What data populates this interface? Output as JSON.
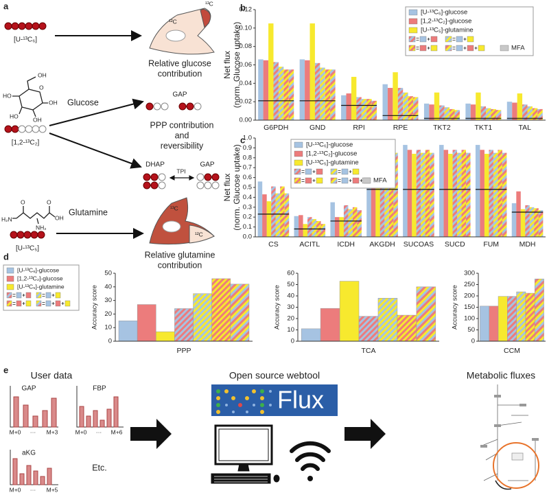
{
  "panel_labels": {
    "a": "a",
    "b": "b",
    "c": "c",
    "d": "d",
    "e": "e"
  },
  "panel_a": {
    "tracer_glucose_u": "[U-¹³C₆]",
    "glucose_contribution": [
      "Relative glucose",
      "contribution"
    ],
    "c12": "¹²C",
    "c13": "¹³C",
    "glucose": "Glucose",
    "glucose_atoms": [
      "OH",
      "O",
      "HO",
      "HO",
      "OH",
      "OH"
    ],
    "tracer_glucose_12": "[1,2-¹³C₂]",
    "gap": "GAP",
    "ppp_contribution": [
      "PPP contribution",
      "and",
      "reversibility"
    ],
    "dhap": "DHAP",
    "tpi": "TPI",
    "glutamine": "Glutamine",
    "glutamine_atoms": [
      "O",
      "OH",
      "H₂N",
      "NH₂",
      "O"
    ],
    "tracer_glutamine": "[U-¹³C₅]",
    "glutamine_contribution": [
      "Relative glutamine",
      "contribution"
    ]
  },
  "panel_e": {
    "user_data": "User data",
    "histograms": [
      {
        "label": "GAP",
        "x_labels": [
          "M+0",
          "···",
          "M+3"
        ]
      },
      {
        "label": "FBP",
        "x_labels": [
          "M+0",
          "···",
          "M+6"
        ]
      },
      {
        "label": "aKG",
        "x_labels": [
          "M+0",
          "···",
          "M+5"
        ]
      }
    ],
    "etc": "Etc.",
    "webtool": "Open source webtool",
    "logo": "Flux",
    "fluxes": "Metabolic fluxes"
  },
  "chart_data": [
    {
      "type": "bar",
      "ylabel": [
        "Net flux",
        "(norm. Glucose uptake)"
      ],
      "categories": [
        "G6PDH",
        "GND",
        "RPI",
        "RPE",
        "TKT2",
        "TKT1",
        "TAL"
      ],
      "ylim": [
        0,
        0.12
      ],
      "yticks": [
        {
          "value": 0,
          "label": "0.00"
        },
        0.02,
        0.04,
        0.06,
        0.08,
        {
          "value": 0.1,
          "label": "0.10"
        },
        0.12
      ],
      "legend": "upper right",
      "series": [
        {
          "name": "[U-¹³C₆]-glucose",
          "color": "#a6c3e2",
          "values": [
            0.066,
            0.066,
            0.027,
            0.039,
            0.018,
            0.018,
            0.02
          ]
        },
        {
          "name": "[1,2-¹³C₂]-glucose",
          "color": "#ec7c7c",
          "values": [
            0.065,
            0.065,
            0.029,
            0.035,
            0.017,
            0.017,
            0.019
          ]
        },
        {
          "name": "[U-¹³C₅]-glutamine",
          "color": "#f7e92e",
          "values": [
            0.105,
            0.105,
            0.047,
            0.052,
            0.03,
            0.03,
            0.029
          ]
        },
        {
          "colors": [
            "#a6c3e2",
            "#ec7c7c"
          ],
          "values": [
            0.063,
            0.062,
            0.025,
            0.035,
            0.016,
            0.015,
            0.017
          ]
        },
        {
          "colors": [
            "#a6c3e2",
            "#f7e92e"
          ],
          "values": [
            0.058,
            0.057,
            0.023,
            0.03,
            0.014,
            0.013,
            0.015
          ]
        },
        {
          "colors": [
            "#ec7c7c",
            "#f7e92e"
          ],
          "values": [
            0.055,
            0.055,
            0.023,
            0.026,
            0.012,
            0.012,
            0.013
          ]
        },
        {
          "colors": [
            "#a6c3e2",
            "#ec7c7c",
            "#f7e92e"
          ],
          "values": [
            0.055,
            0.055,
            0.021,
            0.025,
            0.011,
            0.011,
            0.012
          ]
        },
        {
          "name": "MFA",
          "color": "#c8c8c8",
          "style": "background",
          "values": [
            0.021,
            0.021,
            0.016,
            0.005,
            0.002,
            0.002,
            0.002
          ]
        }
      ]
    },
    {
      "type": "bar",
      "ylabel": [
        "Net flux",
        "(norm. Glucose uptake)"
      ],
      "categories": [
        "CS",
        "ACITL",
        "ICDH",
        "AKGDH",
        "SUCOAS",
        "SUCD",
        "FUM",
        "MDH"
      ],
      "ylim": [
        0,
        1
      ],
      "yticks": [
        {
          "value": 0,
          "label": "0.0"
        },
        0.1,
        0.2,
        0.3,
        0.4,
        0.5,
        0.6,
        0.7,
        0.8,
        0.9,
        {
          "value": 1,
          "label": "1.0"
        }
      ],
      "legend": "upper left",
      "series": [
        {
          "name": "[U-¹³C₆]-glucose",
          "color": "#a6c3e2",
          "values": [
            0.56,
            0.21,
            0.35,
            0.93,
            0.93,
            0.93,
            0.93,
            0.34
          ]
        },
        {
          "name": "[1,2-¹³C₂]-glucose",
          "color": "#ec7c7c",
          "values": [
            0.43,
            0.22,
            0.2,
            0.88,
            0.88,
            0.88,
            0.88,
            0.46
          ]
        },
        {
          "name": "[U-¹³C₅]-glutamine",
          "color": "#f7e92e",
          "values": [
            0.36,
            0.13,
            0.2,
            0.84,
            0.84,
            0.84,
            0.84,
            0.28
          ]
        },
        {
          "colors": [
            "#a6c3e2",
            "#ec7c7c"
          ],
          "values": [
            0.51,
            0.2,
            0.32,
            0.88,
            0.88,
            0.88,
            0.88,
            0.32
          ]
        },
        {
          "colors": [
            "#a6c3e2",
            "#f7e92e"
          ],
          "values": [
            0.44,
            0.18,
            0.28,
            0.85,
            0.85,
            0.85,
            0.85,
            0.3
          ]
        },
        {
          "colors": [
            "#ec7c7c",
            "#f7e92e"
          ],
          "values": [
            0.51,
            0.16,
            0.3,
            0.88,
            0.88,
            0.88,
            0.88,
            0.29
          ]
        },
        {
          "colors": [
            "#a6c3e2",
            "#ec7c7c",
            "#f7e92e"
          ],
          "values": [
            0.44,
            0.13,
            0.27,
            0.85,
            0.85,
            0.85,
            0.85,
            0.27
          ]
        },
        {
          "name": "MFA",
          "color": "#c8c8c8",
          "style": "background",
          "values": [
            0.23,
            0.08,
            0.16,
            0.48,
            0.48,
            0.48,
            0.48,
            0.25
          ]
        }
      ]
    },
    {
      "type": "bar",
      "ylabel": "Accuracy score",
      "xlabel": "PPP",
      "ylim": [
        0,
        50
      ],
      "yticks": [
        0,
        10,
        20,
        30,
        40,
        50
      ],
      "legend": "outside left",
      "series": [
        {
          "name": "[U-¹³C₆]-glucose",
          "color": "#a6c3e2",
          "values": [
            15
          ]
        },
        {
          "name": "[1,2-¹³C₂]-glucose",
          "color": "#ec7c7c",
          "values": [
            27
          ]
        },
        {
          "name": "[U-¹³C₅]-glutamine",
          "color": "#f7e92e",
          "values": [
            7
          ]
        },
        {
          "colors": [
            "#a6c3e2",
            "#ec7c7c"
          ],
          "values": [
            24
          ]
        },
        {
          "colors": [
            "#a6c3e2",
            "#f7e92e"
          ],
          "values": [
            35
          ]
        },
        {
          "colors": [
            "#ec7c7c",
            "#f7e92e"
          ],
          "values": [
            46
          ]
        },
        {
          "colors": [
            "#a6c3e2",
            "#ec7c7c",
            "#f7e92e"
          ],
          "values": [
            42
          ]
        }
      ]
    },
    {
      "type": "bar",
      "ylabel": "Accuracy score",
      "xlabel": "TCA",
      "ylim": [
        0,
        60
      ],
      "yticks": [
        0,
        10,
        20,
        30,
        40,
        50,
        60
      ],
      "series": [
        {
          "color": "#a6c3e2",
          "values": [
            11
          ]
        },
        {
          "color": "#ec7c7c",
          "values": [
            29
          ]
        },
        {
          "color": "#f7e92e",
          "values": [
            53
          ]
        },
        {
          "colors": [
            "#a6c3e2",
            "#ec7c7c"
          ],
          "values": [
            22
          ]
        },
        {
          "colors": [
            "#a6c3e2",
            "#f7e92e"
          ],
          "values": [
            38
          ]
        },
        {
          "colors": [
            "#ec7c7c",
            "#f7e92e"
          ],
          "values": [
            23
          ]
        },
        {
          "colors": [
            "#a6c3e2",
            "#ec7c7c",
            "#f7e92e"
          ],
          "values": [
            48
          ]
        }
      ]
    },
    {
      "type": "bar",
      "ylabel": "Accuracy score",
      "xlabel": "CCM",
      "ylim": [
        0,
        300
      ],
      "yticks": [
        0,
        50,
        100,
        150,
        200,
        250,
        300
      ],
      "series": [
        {
          "color": "#a6c3e2",
          "values": [
            155
          ]
        },
        {
          "color": "#ec7c7c",
          "values": [
            155
          ]
        },
        {
          "color": "#f7e92e",
          "values": [
            198
          ]
        },
        {
          "colors": [
            "#a6c3e2",
            "#ec7c7c"
          ],
          "values": [
            198
          ]
        },
        {
          "colors": [
            "#a6c3e2",
            "#f7e92e"
          ],
          "values": [
            218
          ]
        },
        {
          "colors": [
            "#ec7c7c",
            "#f7e92e"
          ],
          "values": [
            212
          ]
        },
        {
          "colors": [
            "#a6c3e2",
            "#ec7c7c",
            "#f7e92e"
          ],
          "values": [
            275
          ]
        }
      ]
    }
  ]
}
